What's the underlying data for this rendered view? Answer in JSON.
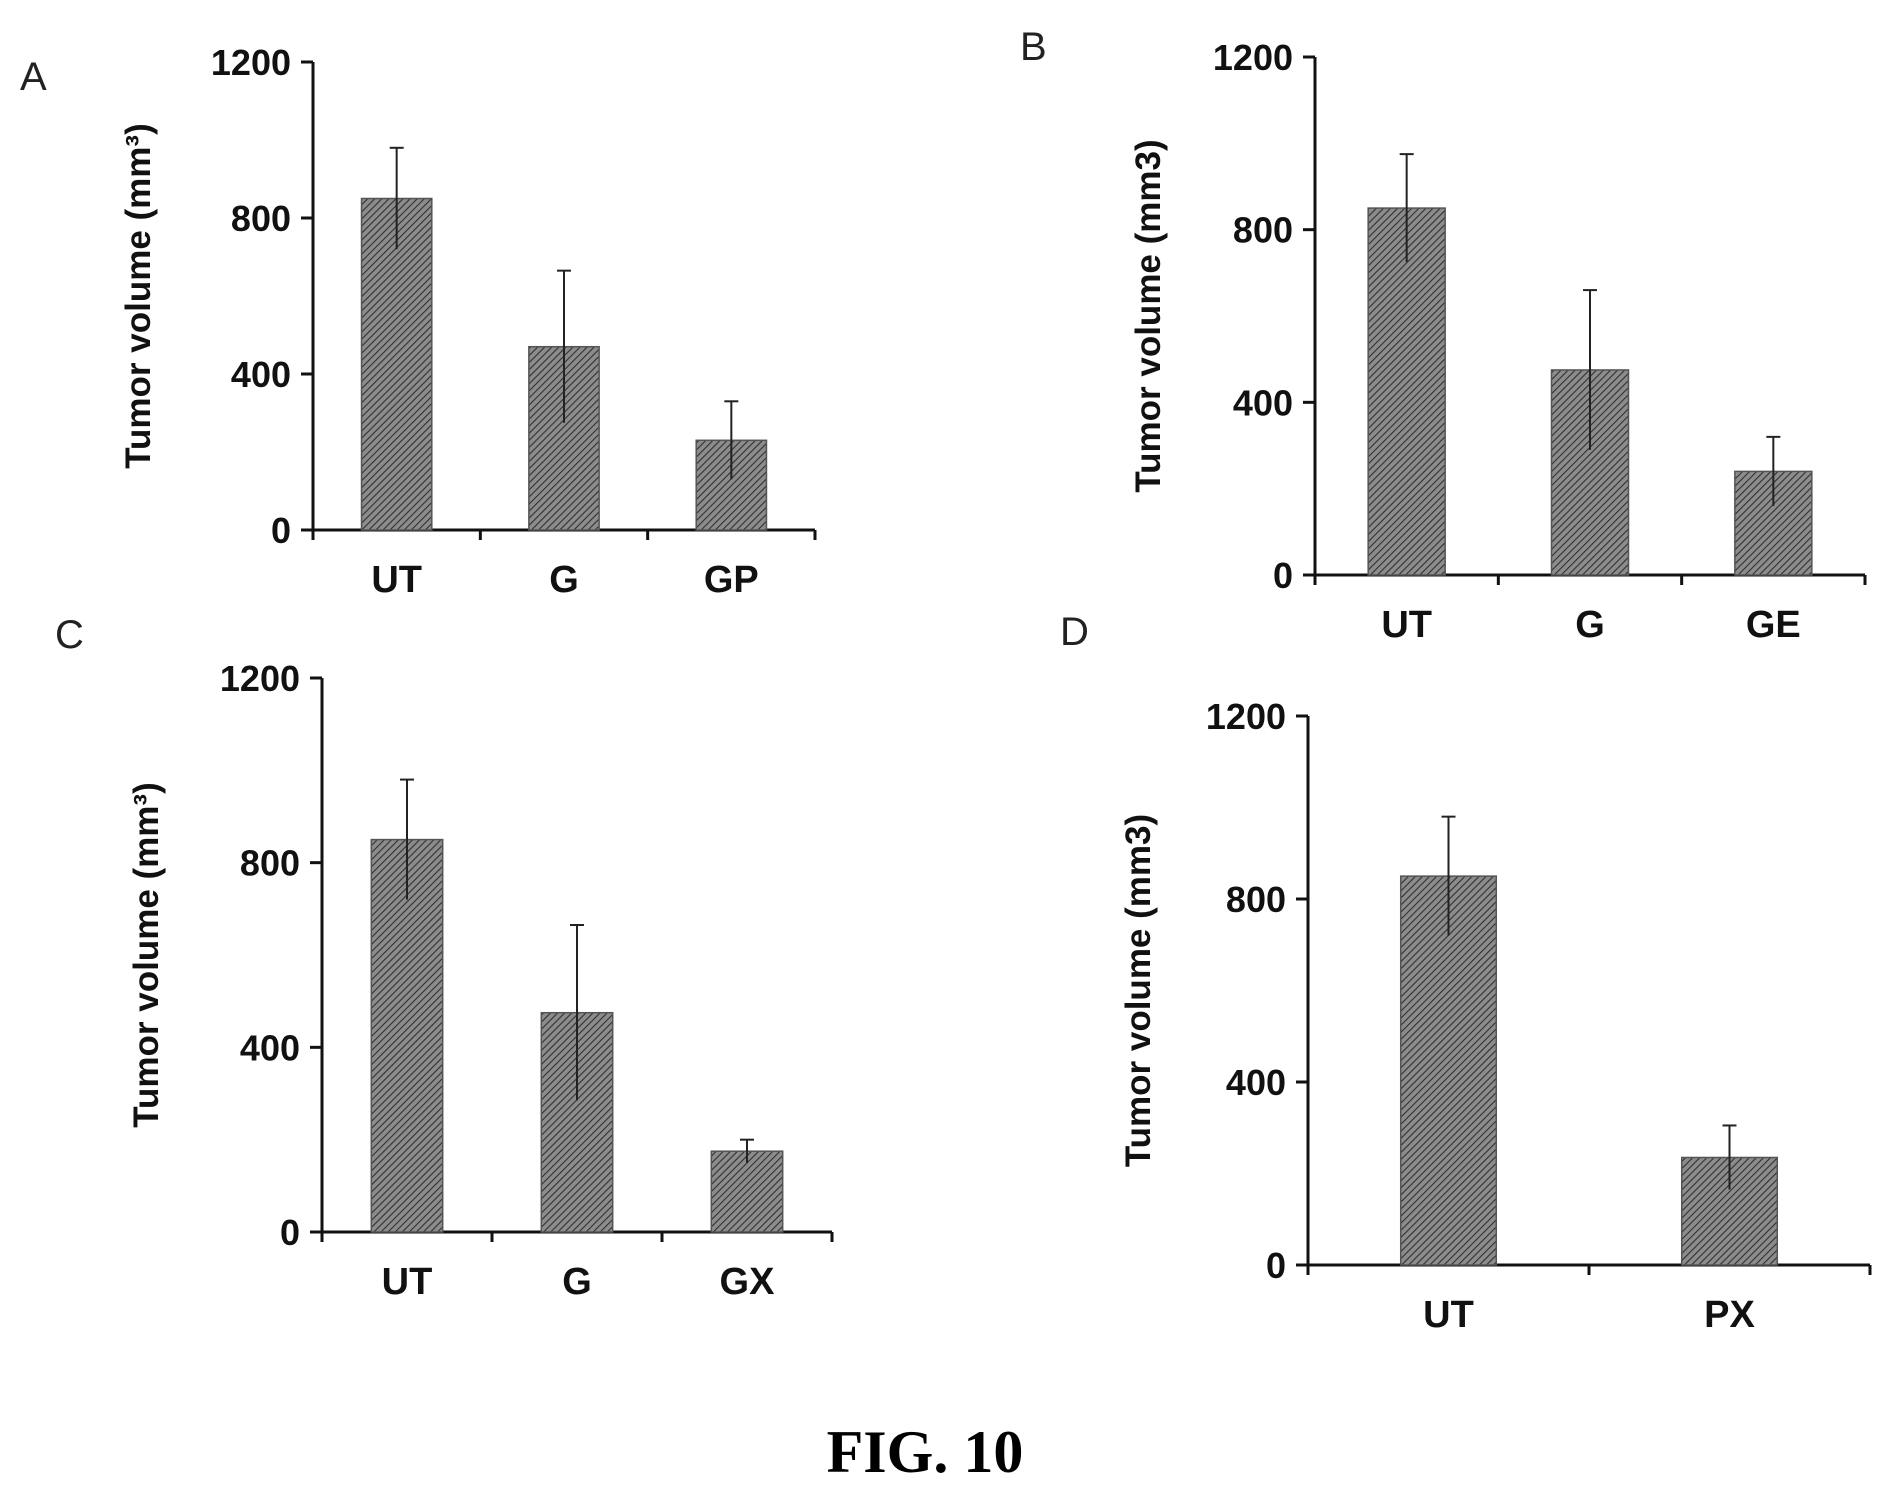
{
  "figure_caption": "FIG. 10",
  "colors": {
    "bar_fill": "#8c8c8c",
    "hatch": "#303030",
    "axis": "#111111"
  },
  "chart_data": [
    {
      "panel": "A",
      "type": "bar",
      "ylabel": "Tumor volume (mm³)",
      "ylim": [
        0,
        1200
      ],
      "yticks": [
        0,
        400,
        800,
        1200
      ],
      "categories": [
        "UT",
        "G",
        "GP"
      ],
      "values": [
        850,
        470,
        230
      ],
      "errors": [
        130,
        195,
        100
      ]
    },
    {
      "panel": "B",
      "type": "bar",
      "ylabel": "Tumor volume (mm3)",
      "ylim": [
        0,
        1200
      ],
      "yticks": [
        0,
        400,
        800,
        1200
      ],
      "categories": [
        "UT",
        "G",
        "GE"
      ],
      "values": [
        850,
        475,
        240
      ],
      "errors": [
        125,
        185,
        80
      ]
    },
    {
      "panel": "C",
      "type": "bar",
      "ylabel": "Tumor volume (mm³)",
      "ylim": [
        0,
        1200
      ],
      "yticks": [
        0,
        400,
        800,
        1200
      ],
      "categories": [
        "UT",
        "G",
        "GX"
      ],
      "values": [
        850,
        475,
        175
      ],
      "errors": [
        130,
        190,
        25
      ]
    },
    {
      "panel": "D",
      "type": "bar",
      "ylabel": "Tumor volume (mm3)",
      "ylim": [
        0,
        1200
      ],
      "yticks": [
        0,
        400,
        800,
        1200
      ],
      "categories": [
        "UT",
        "PX"
      ],
      "values": [
        850,
        235
      ],
      "errors": [
        130,
        70
      ]
    }
  ]
}
